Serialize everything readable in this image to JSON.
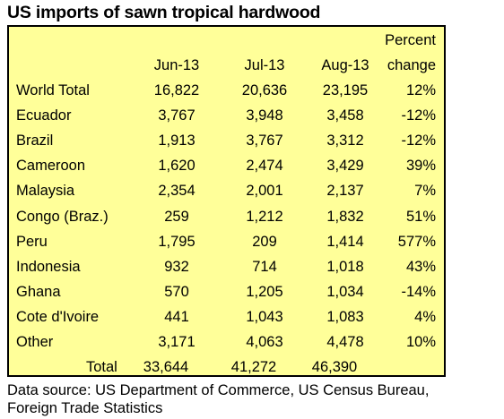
{
  "chart_data": {
    "type": "table",
    "title": "US imports of sawn tropical hardwood",
    "columns": [
      "Jun-13",
      "Jul-13",
      "Aug-13"
    ],
    "pct_header": [
      "Percent",
      "change"
    ],
    "rows": [
      {
        "label": "World Total",
        "values": [
          "16,822",
          "20,636",
          "23,195"
        ],
        "pct": "12%"
      },
      {
        "label": "Ecuador",
        "values": [
          "3,767",
          "3,948",
          "3,458"
        ],
        "pct": "-12%"
      },
      {
        "label": "Brazil",
        "values": [
          "1,913",
          "3,767",
          "3,312"
        ],
        "pct": "-12%"
      },
      {
        "label": "Cameroon",
        "values": [
          "1,620",
          "2,474",
          "3,429"
        ],
        "pct": "39%"
      },
      {
        "label": "Malaysia",
        "values": [
          "2,354",
          "2,001",
          "2,137"
        ],
        "pct": "7%"
      },
      {
        "label": "Congo (Braz.)",
        "values": [
          "259",
          "1,212",
          "1,832"
        ],
        "pct": "51%"
      },
      {
        "label": "Peru",
        "values": [
          "1,795",
          "209",
          "1,414"
        ],
        "pct": "577%"
      },
      {
        "label": "Indonesia",
        "values": [
          "932",
          "714",
          "1,018"
        ],
        "pct": "43%"
      },
      {
        "label": "Ghana",
        "values": [
          "570",
          "1,205",
          "1,034"
        ],
        "pct": "-14%"
      },
      {
        "label": "Cote d'Ivoire",
        "values": [
          "441",
          "1,043",
          "1,083"
        ],
        "pct": "4%"
      },
      {
        "label": "Other",
        "values": [
          "3,171",
          "4,063",
          "4,478"
        ],
        "pct": "10%"
      }
    ],
    "total": {
      "label": "Total",
      "values": [
        "33,644",
        "41,272",
        "46,390"
      ]
    },
    "source_lines": [
      "Data source: US Department of Commerce, US Census Bureau,",
      "Foreign Trade Statistics"
    ],
    "background_color": "#ffff99",
    "border_color": "#000000"
  }
}
